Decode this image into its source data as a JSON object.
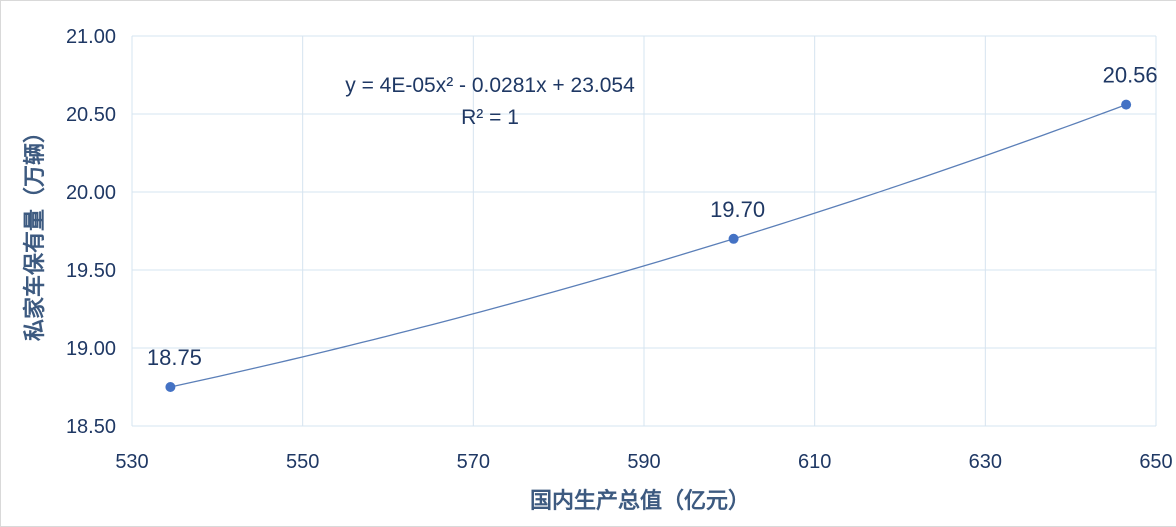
{
  "chart_data": {
    "type": "scatter",
    "xlabel": "国内生产总值（亿元）",
    "ylabel": "私家车保有量（万辆）",
    "xlim": [
      530,
      650
    ],
    "ylim": [
      18.5,
      21.0
    ],
    "x_ticks": [
      "530",
      "550",
      "570",
      "590",
      "610",
      "630",
      "650"
    ],
    "y_ticks": [
      "18.50",
      "19.00",
      "19.50",
      "20.00",
      "20.50",
      "21.00"
    ],
    "grid": true,
    "series": [
      {
        "x": [
          534.5,
          600.5,
          646.5
        ],
        "y": [
          18.75,
          19.7,
          20.56
        ],
        "labels": [
          "18.75",
          "19.70",
          "20.56"
        ]
      }
    ],
    "trendline": {
      "type": "polynomial",
      "order": 2,
      "equation_text": "y = 4E-05x² - 0.0281x + 23.054",
      "r2_text": "R² = 1"
    },
    "colors": {
      "marker": "#4472c4",
      "line": "#5b7fb8",
      "grid": "#d6e4f0",
      "text": "#1f3864"
    }
  }
}
